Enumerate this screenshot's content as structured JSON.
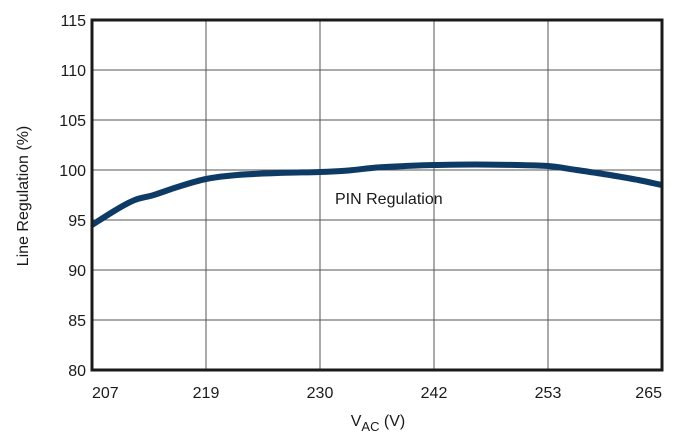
{
  "chart_data": {
    "type": "line",
    "xlabel": "V",
    "xlabel_sub": "AC",
    "xlabel_unit": " (V)",
    "ylabel": "Line Regulation (%)",
    "x_ticks": [
      "207",
      "219",
      "230",
      "242",
      "253",
      "265"
    ],
    "y_ticks": [
      "80",
      "85",
      "90",
      "95",
      "100",
      "105",
      "110",
      "115"
    ],
    "ylim": [
      80,
      115
    ],
    "grid": true,
    "series": [
      {
        "name": "PIN Regulation",
        "color": "#0d3b66",
        "points": [
          {
            "x": 207,
            "y": 94.5
          },
          {
            "x": 209.5,
            "y": 96.0
          },
          {
            "x": 211.5,
            "y": 97.0
          },
          {
            "x": 213.5,
            "y": 97.5
          },
          {
            "x": 216,
            "y": 98.3
          },
          {
            "x": 219,
            "y": 99.1
          },
          {
            "x": 222,
            "y": 99.5
          },
          {
            "x": 226,
            "y": 99.7
          },
          {
            "x": 230,
            "y": 99.8
          },
          {
            "x": 233,
            "y": 99.95
          },
          {
            "x": 236,
            "y": 100.25
          },
          {
            "x": 239,
            "y": 100.4
          },
          {
            "x": 242,
            "y": 100.5
          },
          {
            "x": 246,
            "y": 100.55
          },
          {
            "x": 250,
            "y": 100.5
          },
          {
            "x": 253,
            "y": 100.4
          },
          {
            "x": 256,
            "y": 100.0
          },
          {
            "x": 259.5,
            "y": 99.5
          },
          {
            "x": 262.5,
            "y": 99.0
          },
          {
            "x": 265,
            "y": 98.5
          }
        ]
      }
    ],
    "annotation": "PIN Regulation"
  }
}
